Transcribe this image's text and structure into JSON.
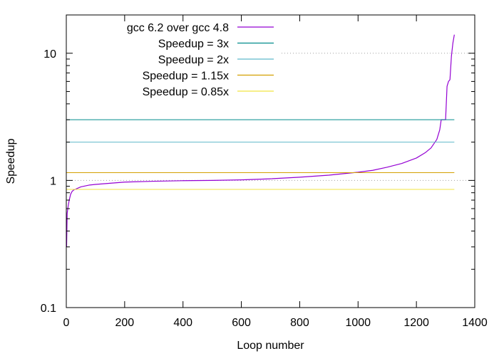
{
  "chart_data": {
    "type": "line",
    "xlabel": "Loop number",
    "ylabel": "Speedup",
    "xlim": [
      0,
      1400
    ],
    "ylim": [
      0.1,
      20
    ],
    "y_scale": "log",
    "x_ticks": [
      {
        "value": 0,
        "label": "0"
      },
      {
        "value": 200,
        "label": "200"
      },
      {
        "value": 400,
        "label": "400"
      },
      {
        "value": 600,
        "label": "600"
      },
      {
        "value": 800,
        "label": "800"
      },
      {
        "value": 1000,
        "label": "1000"
      },
      {
        "value": 1200,
        "label": "1200"
      },
      {
        "value": 1400,
        "label": "1400"
      }
    ],
    "y_major_ticks": [
      {
        "value": 0.1,
        "label": "0.1"
      },
      {
        "value": 1,
        "label": "1"
      },
      {
        "value": 10,
        "label": "10"
      }
    ],
    "y_minor_ticks": [
      0.2,
      0.3,
      0.4,
      0.5,
      0.6,
      0.7,
      0.8,
      0.9,
      2,
      3,
      4,
      5,
      6,
      7,
      8,
      9,
      20
    ],
    "reference_gridlines_y": [
      1,
      10
    ],
    "grid": "dotted at y = 1 and y = 10",
    "legend_position": "top-left",
    "series": [
      {
        "name": "gcc 6.2 over gcc 4.8",
        "kind": "curve",
        "color": "#9400d3",
        "x": [
          1,
          3,
          6,
          10,
          15,
          20,
          25,
          30,
          40,
          50,
          60,
          80,
          100,
          150,
          200,
          300,
          400,
          500,
          600,
          700,
          800,
          900,
          1000,
          1050,
          1100,
          1150,
          1200,
          1230,
          1250,
          1270,
          1280,
          1285,
          1290,
          1300,
          1305,
          1310,
          1315,
          1320,
          1325,
          1330
        ],
        "y": [
          0.3,
          0.55,
          0.62,
          0.7,
          0.78,
          0.82,
          0.84,
          0.85,
          0.87,
          0.89,
          0.9,
          0.92,
          0.93,
          0.95,
          0.97,
          0.985,
          0.995,
          1.0,
          1.01,
          1.03,
          1.06,
          1.1,
          1.16,
          1.2,
          1.27,
          1.36,
          1.5,
          1.65,
          1.8,
          2.1,
          2.5,
          3.0,
          3.0,
          3.0,
          5.5,
          6.0,
          6.2,
          9.5,
          12.0,
          14.0
        ]
      },
      {
        "name": "Speedup = 3x",
        "kind": "constant",
        "value": 3,
        "color": "#008b8b",
        "x_range": [
          0,
          1330
        ]
      },
      {
        "name": "Speedup = 2x",
        "kind": "constant",
        "value": 2,
        "color": "#5fb9c9",
        "x_range": [
          0,
          1330
        ]
      },
      {
        "name": "Speedup = 1.15x",
        "kind": "constant",
        "value": 1.15,
        "color": "#d4a000",
        "x_range": [
          0,
          1330
        ]
      },
      {
        "name": "Speedup = 0.85x",
        "kind": "constant",
        "value": 0.85,
        "color": "#f0e442",
        "x_range": [
          0,
          1330
        ]
      }
    ]
  }
}
